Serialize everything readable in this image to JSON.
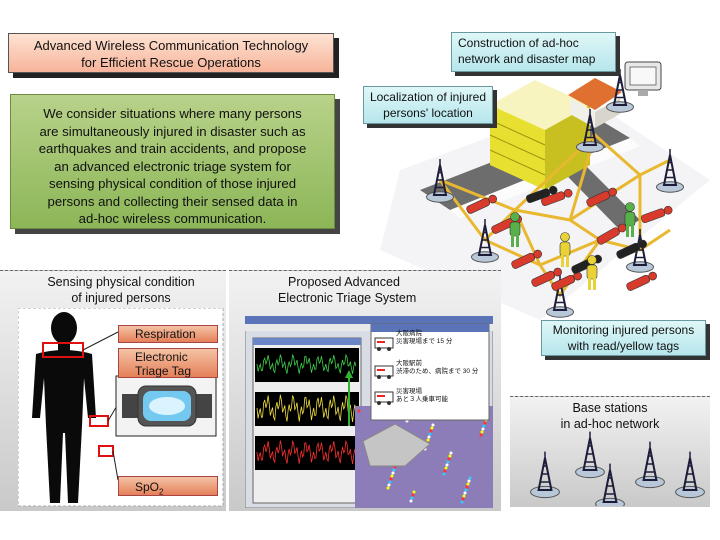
{
  "title": {
    "line1": "Advanced Wireless Communication Technology",
    "line2": "for Efficient Rescue Operations"
  },
  "intro": {
    "lines": [
      "We consider situations where many persons",
      "are simultaneously injured in disaster such as",
      "earthquakes and train accidents, and propose",
      "an advanced electronic triage system for",
      "sensing physical condition of those injured",
      "persons and collecting their sensed data in",
      "ad-hoc wireless communication."
    ]
  },
  "callouts": {
    "network": {
      "line1": "Construction of ad-hoc",
      "line2": "network and disaster map"
    },
    "localization": {
      "line1": "Localization of injured",
      "line2": "persons' location"
    },
    "monitoring": {
      "line1": "Monitoring injured persons",
      "line2": "with read/yellow tags"
    }
  },
  "sensing": {
    "title1": "Sensing physical condition",
    "title2": "of injured persons",
    "respiration": "Respiration",
    "tag1": "Electronic",
    "tag2": "Triage Tag",
    "spo2": "SpO",
    "spo2_sub": "2"
  },
  "triage": {
    "title1": "Proposed Advanced",
    "title2": "Electronic Triage System",
    "info": [
      {
        "l1": "大阪病院",
        "l2": "災害現場まで 15 分"
      },
      {
        "l1": "大阪駅前",
        "l2": "渋滞のため、病院まで 30 分"
      },
      {
        "l1": "災害現場",
        "l2": "あと３人乗車可能"
      }
    ]
  },
  "base": {
    "line1": "Base stations",
    "line2": "in ad-hoc network"
  },
  "colors": {
    "red_tag": "#d83a2c",
    "yellow_tag": "#e8d238",
    "green_tag": "#57b04a",
    "link": "#e8b830"
  }
}
